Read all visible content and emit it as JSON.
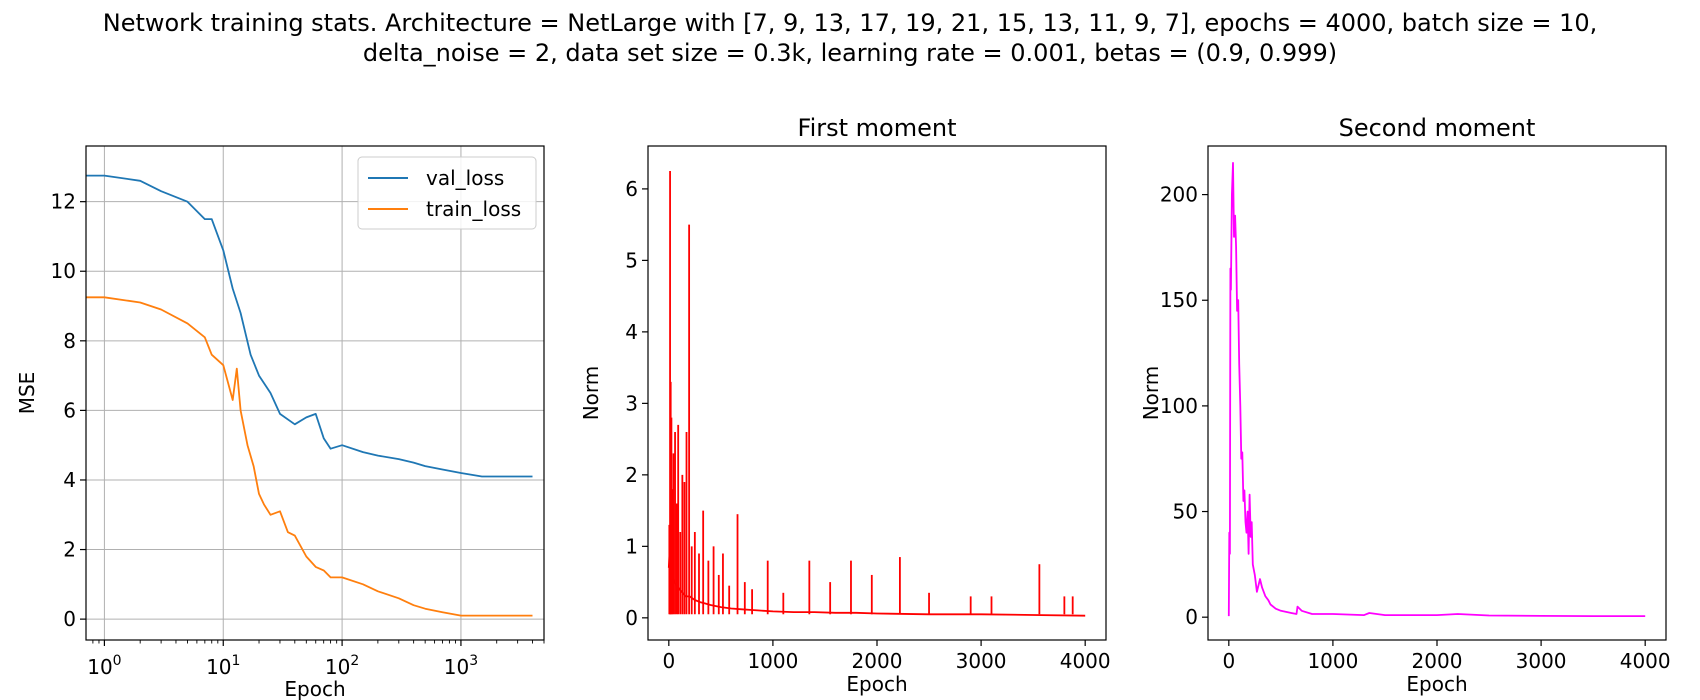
{
  "figure": {
    "title_line1": "Network training stats. Architecture = NetLarge with [7, 9, 13, 17, 19, 21, 15, 13, 11, 9, 7], epochs = 4000, batch size = 10,",
    "title_line2": "delta_noise = 2, data set size = 0.3k, learning rate = 0.001, betas = (0.9, 0.999)"
  },
  "chart_data": [
    {
      "type": "line",
      "title": "",
      "xlabel": "Epoch",
      "ylabel": "MSE",
      "xscale": "log",
      "xlim": [
        0.7,
        5000
      ],
      "ylim": [
        -0.6,
        13.6
      ],
      "xticks": [
        {
          "value": 1,
          "label": "10^0"
        },
        {
          "value": 10,
          "label": "10^1"
        },
        {
          "value": 100,
          "label": "10^2"
        },
        {
          "value": 1000,
          "label": "10^3"
        }
      ],
      "yticks": [
        0,
        2,
        4,
        6,
        8,
        10,
        12
      ],
      "grid": true,
      "legend": "top-right",
      "series": [
        {
          "name": "val_loss",
          "color": "#1f77b4",
          "x": [
            0.7,
            1,
            2,
            3,
            5,
            7,
            8,
            10,
            12,
            14,
            17,
            20,
            25,
            30,
            40,
            50,
            60,
            70,
            80,
            100,
            150,
            200,
            300,
            400,
            500,
            700,
            1000,
            1500,
            2000,
            3000,
            4000
          ],
          "y": [
            12.75,
            12.75,
            12.6,
            12.3,
            12.0,
            11.5,
            11.5,
            10.6,
            9.5,
            8.8,
            7.6,
            7.0,
            6.5,
            5.9,
            5.6,
            5.8,
            5.9,
            5.2,
            4.9,
            5.0,
            4.8,
            4.7,
            4.6,
            4.5,
            4.4,
            4.3,
            4.2,
            4.1,
            4.1,
            4.1,
            4.1
          ]
        },
        {
          "name": "train_loss",
          "color": "#ff7f0e",
          "x": [
            0.7,
            1,
            2,
            3,
            5,
            7,
            8,
            10,
            12,
            13,
            14,
            16,
            18,
            20,
            22,
            25,
            30,
            35,
            40,
            50,
            60,
            70,
            80,
            100,
            150,
            200,
            300,
            400,
            500,
            700,
            1000,
            1500,
            2000,
            3000,
            4000
          ],
          "y": [
            9.25,
            9.25,
            9.1,
            8.9,
            8.5,
            8.1,
            7.6,
            7.3,
            6.3,
            7.2,
            6.0,
            5.0,
            4.4,
            3.6,
            3.3,
            3.0,
            3.1,
            2.5,
            2.4,
            1.8,
            1.5,
            1.4,
            1.2,
            1.2,
            1.0,
            0.8,
            0.6,
            0.4,
            0.3,
            0.2,
            0.1,
            0.1,
            0.1,
            0.1,
            0.1
          ]
        }
      ]
    },
    {
      "type": "line",
      "title": "First moment",
      "xlabel": "Epoch",
      "ylabel": "Norm",
      "xlim": [
        -200,
        4200
      ],
      "ylim": [
        -0.31,
        6.6
      ],
      "xticks": [
        0,
        1000,
        2000,
        3000,
        4000
      ],
      "yticks": [
        0,
        1,
        2,
        3,
        4,
        5,
        6
      ],
      "grid": false,
      "series": [
        {
          "color": "#ff0000",
          "x": [
            0,
            10,
            20,
            30,
            50,
            80,
            100,
            130,
            160,
            200,
            250,
            300,
            350,
            400,
            500,
            600,
            700,
            800,
            1000,
            1200,
            1400,
            1600,
            1800,
            2000,
            2500,
            3000,
            3500,
            4000
          ],
          "y": [
            0.7,
            1.0,
            0.9,
            0.6,
            0.5,
            0.45,
            0.4,
            0.35,
            0.3,
            0.3,
            0.25,
            0.22,
            0.2,
            0.18,
            0.15,
            0.13,
            0.12,
            0.11,
            0.09,
            0.08,
            0.08,
            0.07,
            0.07,
            0.06,
            0.05,
            0.05,
            0.04,
            0.03
          ]
        }
      ],
      "spikes": [
        {
          "x": 5,
          "y": 1.3
        },
        {
          "x": 12,
          "y": 6.25
        },
        {
          "x": 18,
          "y": 3.3
        },
        {
          "x": 25,
          "y": 2.8
        },
        {
          "x": 35,
          "y": 1.8
        },
        {
          "x": 45,
          "y": 2.3
        },
        {
          "x": 60,
          "y": 2.6
        },
        {
          "x": 75,
          "y": 1.6
        },
        {
          "x": 90,
          "y": 2.7
        },
        {
          "x": 110,
          "y": 1.2
        },
        {
          "x": 130,
          "y": 2.0
        },
        {
          "x": 150,
          "y": 1.9
        },
        {
          "x": 170,
          "y": 2.6
        },
        {
          "x": 195,
          "y": 5.5
        },
        {
          "x": 220,
          "y": 1.0
        },
        {
          "x": 250,
          "y": 1.2
        },
        {
          "x": 290,
          "y": 0.9
        },
        {
          "x": 330,
          "y": 1.5
        },
        {
          "x": 380,
          "y": 0.8
        },
        {
          "x": 430,
          "y": 1.0
        },
        {
          "x": 480,
          "y": 0.6
        },
        {
          "x": 520,
          "y": 0.9
        },
        {
          "x": 580,
          "y": 0.45
        },
        {
          "x": 660,
          "y": 1.45
        },
        {
          "x": 730,
          "y": 0.5
        },
        {
          "x": 800,
          "y": 0.4
        },
        {
          "x": 950,
          "y": 0.8
        },
        {
          "x": 1100,
          "y": 0.35
        },
        {
          "x": 1350,
          "y": 0.8
        },
        {
          "x": 1550,
          "y": 0.5
        },
        {
          "x": 1750,
          "y": 0.8
        },
        {
          "x": 1950,
          "y": 0.6
        },
        {
          "x": 2220,
          "y": 0.85
        },
        {
          "x": 2500,
          "y": 0.35
        },
        {
          "x": 2900,
          "y": 0.3
        },
        {
          "x": 3100,
          "y": 0.3
        },
        {
          "x": 3560,
          "y": 0.75
        },
        {
          "x": 3800,
          "y": 0.3
        },
        {
          "x": 3880,
          "y": 0.3
        }
      ]
    },
    {
      "type": "line",
      "title": "Second moment",
      "xlabel": "Epoch",
      "ylabel": "Norm",
      "xlim": [
        -200,
        4200
      ],
      "ylim": [
        -10.8,
        223
      ],
      "xticks": [
        0,
        1000,
        2000,
        3000,
        4000
      ],
      "yticks": [
        0,
        50,
        100,
        150,
        200
      ],
      "grid": false,
      "series": [
        {
          "color": "#ff00ff",
          "x": [
            0,
            5,
            10,
            15,
            20,
            30,
            40,
            50,
            60,
            70,
            80,
            90,
            100,
            110,
            120,
            130,
            140,
            150,
            160,
            170,
            180,
            190,
            200,
            210,
            220,
            230,
            250,
            270,
            300,
            320,
            350,
            380,
            400,
            450,
            500,
            550,
            600,
            650,
            660,
            700,
            800,
            1000,
            1300,
            1350,
            1500,
            2000,
            2200,
            2500,
            3000,
            3500,
            4000
          ],
          "y": [
            0.5,
            40,
            30,
            165,
            155,
            200,
            215,
            180,
            190,
            175,
            145,
            150,
            120,
            100,
            75,
            78,
            55,
            60,
            45,
            40,
            50,
            30,
            58,
            38,
            45,
            25,
            20,
            12,
            18,
            14,
            10,
            8,
            6,
            4,
            3,
            2.5,
            2,
            1.5,
            5,
            3,
            1.5,
            1.5,
            1,
            2,
            1,
            1,
            1.5,
            0.8,
            0.6,
            0.5,
            0.5
          ]
        }
      ]
    }
  ]
}
